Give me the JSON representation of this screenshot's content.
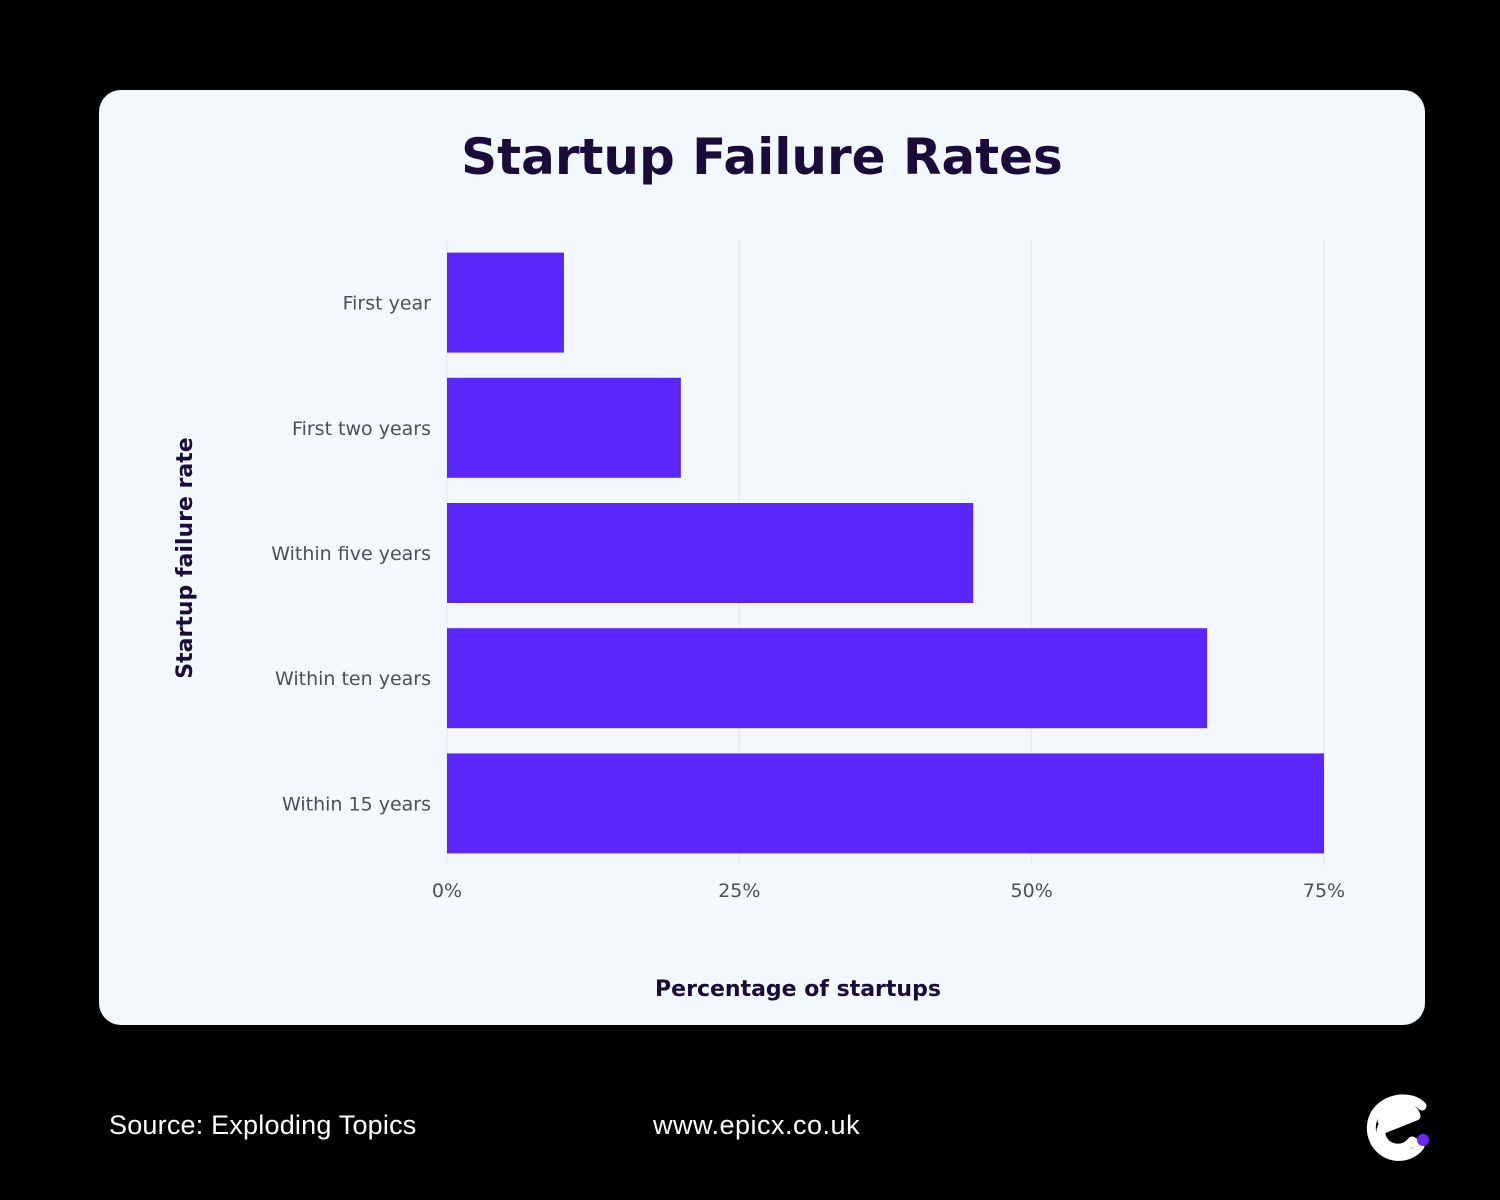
{
  "chart_data": {
    "type": "bar",
    "orientation": "horizontal",
    "title": "Startup Failure Rates",
    "xlabel": "Percentage of startups",
    "ylabel": "Startup failure rate",
    "categories": [
      "First year",
      "First two years",
      "Within five years",
      "Within ten years",
      "Within 15 years"
    ],
    "values": [
      10,
      20,
      45,
      65,
      75
    ],
    "xlim": [
      0,
      75
    ],
    "xticks": [
      0,
      25,
      50,
      75
    ],
    "xtick_labels": [
      "0%",
      "25%",
      "50%",
      "75%"
    ],
    "grid": "vertical",
    "bar_color": "#5b26fb"
  },
  "footer": {
    "source": "Source: Exploding Topics",
    "url": "www.epicx.co.uk"
  },
  "colors": {
    "background": "#000000",
    "card": "#f3f8fc",
    "title": "#1a0b3b",
    "logo_dot": "#6b2bf5"
  }
}
